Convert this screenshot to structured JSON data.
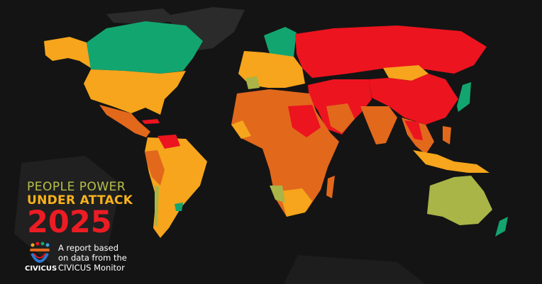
{
  "title": {
    "line1": "PEOPLE POWER",
    "line2": "UNDER ATTACK",
    "line3": "2025"
  },
  "logo": {
    "name": "CIVICUS"
  },
  "report_note": {
    "line1": "A report based",
    "line2": "on data from the",
    "line3": "CIVICUS Monitor"
  },
  "colors": {
    "background": "#141414",
    "unrated_land": "#2b2b2b",
    "open": "#13a56f",
    "narrowed": "#a9b546",
    "obstructed": "#f6a51c",
    "repressed": "#e2681c",
    "closed": "#ec141f",
    "title_line1": "#b7c04a",
    "title_line2": "#f8b21c",
    "title_line3": "#ec1c24"
  }
}
